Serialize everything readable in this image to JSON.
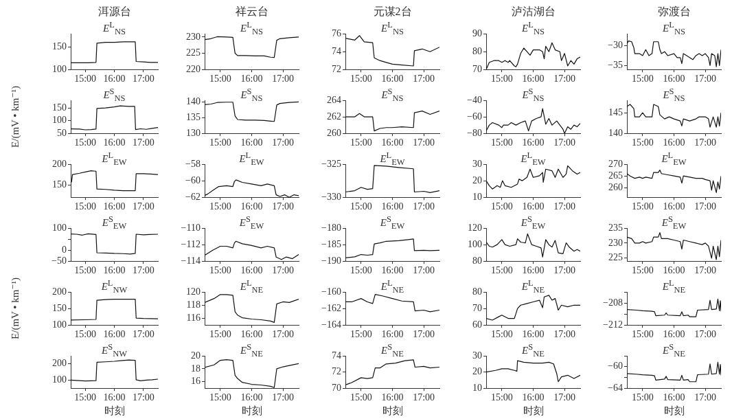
{
  "chart_data": [
    {
      "type": "line",
      "title": "洱源台",
      "annotations": [
        "E$^{L}$$_{NS}$"
      ],
      "color": "#111111",
      "x": [
        14.5,
        14.8,
        15.1,
        15.37,
        15.4,
        15.7,
        16.0,
        16.3,
        16.72,
        16.75,
        17.0,
        17.25,
        17.5
      ],
      "values": [
        115,
        115,
        115,
        116,
        159,
        161,
        161,
        162,
        162,
        118,
        117,
        116,
        116
      ],
      "xlim": [
        14.5,
        17.5
      ],
      "xticks": [
        {
          "value": 15,
          "label": "15:00"
        },
        {
          "value": 16,
          "label": "16:00"
        },
        {
          "value": 17,
          "label": "17:00"
        }
      ],
      "ylim": [
        100,
        180
      ],
      "yticks": [
        100,
        150
      ]
    },
    {
      "type": "line",
      "title": "祥云台",
      "annotations": [
        "E$^{L}$$_{NS}$"
      ],
      "color": "#111111",
      "x": [
        14.5,
        14.7,
        14.9,
        15.2,
        15.4,
        15.47,
        15.55,
        15.8,
        16.1,
        16.4,
        16.6,
        16.72,
        16.8,
        16.9,
        17.2,
        17.5
      ],
      "values": [
        229.2,
        229.5,
        230.1,
        230,
        229.9,
        225,
        224.3,
        224.3,
        224.2,
        224.2,
        223.8,
        223.7,
        229,
        229.5,
        229.8,
        230
      ],
      "xlim": [
        14.5,
        17.5
      ],
      "xticks": [
        {
          "value": 15,
          "label": "15:00"
        },
        {
          "value": 16,
          "label": "16:00"
        },
        {
          "value": 17,
          "label": "17:00"
        }
      ],
      "ylim": [
        220,
        231
      ],
      "yticks": [
        220,
        225,
        230
      ]
    },
    {
      "type": "line",
      "title": "元谋2台",
      "annotations": [
        "E$^{L}$$_{NS}$"
      ],
      "color": "#111111",
      "x": [
        14.5,
        14.8,
        14.95,
        15.1,
        15.37,
        15.42,
        15.6,
        15.8,
        16.0,
        16.3,
        16.67,
        16.7,
        16.95,
        17.2,
        17.5
      ],
      "values": [
        75.5,
        75.3,
        75.8,
        75.1,
        75,
        73.3,
        73,
        72.8,
        72.6,
        72.5,
        72.4,
        74.1,
        74.3,
        74,
        74.5
      ],
      "xlim": [
        14.5,
        17.5
      ],
      "xticks": [
        {
          "value": 15,
          "label": "15:00"
        },
        {
          "value": 16,
          "label": "16:00"
        },
        {
          "value": 17,
          "label": "17:00"
        }
      ],
      "ylim": [
        72,
        76
      ],
      "yticks": [
        72,
        74,
        76
      ]
    },
    {
      "type": "line",
      "title": "泸沽湖台",
      "annotations": [
        "E$^{L}$$_{NS}$"
      ],
      "color": "#111111",
      "x": [
        14.5,
        14.55,
        14.6,
        14.75,
        14.9,
        15.0,
        15.1,
        15.2,
        15.25,
        15.4,
        15.45,
        15.5,
        15.6,
        15.7,
        15.8,
        15.9,
        16.0,
        16.2,
        16.3,
        16.35,
        16.4,
        16.5,
        16.6,
        16.7,
        16.85,
        16.9,
        17.0,
        17.1,
        17.2,
        17.3,
        17.4,
        17.5
      ],
      "values": [
        70,
        72,
        74,
        75,
        75,
        74,
        75,
        74,
        75,
        72,
        71.5,
        73,
        79,
        82,
        80,
        78,
        81,
        81,
        80,
        76,
        83,
        80,
        85,
        81,
        80,
        75,
        79,
        72,
        75,
        73,
        76,
        77
      ],
      "xlim": [
        14.5,
        17.5
      ],
      "xticks": [
        {
          "value": 15,
          "label": "15:00"
        },
        {
          "value": 16,
          "label": "16:00"
        },
        {
          "value": 17,
          "label": "17:00"
        }
      ],
      "ylim": [
        70,
        90
      ],
      "yticks": [
        70,
        80,
        90
      ]
    },
    {
      "type": "line",
      "title": "弥渡台",
      "annotations": [
        "E$^{L}$$_{NS}$"
      ],
      "color": "#111111",
      "x": [
        14.5,
        14.55,
        14.65,
        14.72,
        14.75,
        14.9,
        15.0,
        15.1,
        15.2,
        15.3,
        15.35,
        15.5,
        15.55,
        15.6,
        15.7,
        15.8,
        16.0,
        16.1,
        16.2,
        16.25,
        16.3,
        16.5,
        16.6,
        16.7,
        16.8,
        16.9,
        17.0,
        17.1,
        17.15,
        17.2,
        17.3,
        17.35,
        17.4,
        17.45,
        17.5
      ],
      "values": [
        -29.5,
        -28.8,
        -29,
        -30.5,
        -32,
        -32,
        -32.5,
        -31,
        -32.5,
        -32,
        -29,
        -29,
        -31,
        -32,
        -31.5,
        -32.5,
        -32,
        -33,
        -33,
        -34.5,
        -32,
        -33,
        -33.5,
        -32.5,
        -32,
        -32.5,
        -32,
        -33,
        -35,
        -32,
        -32.5,
        -35.3,
        -32,
        -35,
        -31
      ],
      "xlim": [
        14.5,
        17.5
      ],
      "xticks": [
        {
          "value": 15,
          "label": "15:00"
        },
        {
          "value": 16,
          "label": "16:00"
        },
        {
          "value": 17,
          "label": "17:00"
        }
      ],
      "ylim": [
        -36,
        -27
      ],
      "yticks": [
        -35,
        -30
      ]
    },
    {
      "type": "line",
      "ylabel": "E/(mV • km⁻¹)",
      "annotations": [
        "E$^{S}$$_{NS}$"
      ],
      "color": "#111111",
      "x": [
        14.5,
        14.8,
        15.0,
        15.2,
        15.37,
        15.4,
        15.7,
        16.0,
        16.2,
        16.5,
        16.7,
        16.73,
        16.9,
        17.1,
        17.3,
        17.5
      ],
      "values": [
        68,
        67,
        64,
        65,
        67,
        148,
        150,
        154,
        158,
        156,
        156,
        65,
        68,
        66,
        70,
        73
      ],
      "xlim": [
        14.5,
        17.5
      ],
      "xticks": [
        {
          "value": 15,
          "label": "15:00"
        },
        {
          "value": 16,
          "label": "16:00"
        },
        {
          "value": 17,
          "label": "17:00"
        }
      ],
      "ylim": [
        50,
        180
      ],
      "yticks": [
        50,
        100,
        150
      ]
    },
    {
      "type": "line",
      "annotations": [
        "E$^{S}$$_{NS}$"
      ],
      "color": "#111111",
      "x": [
        14.5,
        14.7,
        14.9,
        15.2,
        15.4,
        15.47,
        15.55,
        15.8,
        16.1,
        16.4,
        16.6,
        16.72,
        16.8,
        16.9,
        17.2,
        17.5
      ],
      "values": [
        139.1,
        139.3,
        139.8,
        139.9,
        139.9,
        135.5,
        134.4,
        134.2,
        134.2,
        134.1,
        133.9,
        133.8,
        139,
        139.5,
        139.8,
        140
      ],
      "xlim": [
        14.5,
        17.5
      ],
      "xticks": [
        {
          "value": 15,
          "label": "15:00"
        },
        {
          "value": 16,
          "label": "16:00"
        },
        {
          "value": 17,
          "label": "17:00"
        }
      ],
      "ylim": [
        130,
        140.5
      ],
      "yticks": [
        130,
        135,
        140
      ]
    },
    {
      "type": "line",
      "annotations": [
        "E$^{S}$$_{NS}$"
      ],
      "color": "#111111",
      "x": [
        14.5,
        14.8,
        14.95,
        15.1,
        15.37,
        15.42,
        15.6,
        15.8,
        16.0,
        16.3,
        16.67,
        16.7,
        16.95,
        17.2,
        17.5
      ],
      "values": [
        262,
        262,
        262.4,
        262,
        262,
        260.3,
        260.6,
        260.7,
        260.7,
        260.8,
        260.7,
        262.5,
        262.7,
        262.3,
        262.7
      ],
      "xlim": [
        14.5,
        17.5
      ],
      "xticks": [
        {
          "value": 15,
          "label": "15:00"
        },
        {
          "value": 16,
          "label": "16:00"
        },
        {
          "value": 17,
          "label": "17:00"
        }
      ],
      "ylim": [
        260,
        264
      ],
      "yticks": [
        260,
        262,
        264
      ]
    },
    {
      "type": "line",
      "annotations": [
        "E$^{S}$$_{NS}$"
      ],
      "color": "#111111",
      "x": [
        14.5,
        14.6,
        14.7,
        14.9,
        15.0,
        15.05,
        15.2,
        15.3,
        15.45,
        15.6,
        15.75,
        15.85,
        15.95,
        16.1,
        16.25,
        16.3,
        16.4,
        16.5,
        16.6,
        16.75,
        16.95,
        17.0,
        17.1,
        17.2,
        17.3,
        17.4,
        17.5
      ],
      "values": [
        -77,
        -70,
        -67,
        -70,
        -73,
        -70,
        -70,
        -67,
        -70,
        -67,
        -65,
        -77,
        -65,
        -62,
        -60,
        -50,
        -69,
        -62,
        -70,
        -65,
        -75,
        -80,
        -72,
        -75,
        -70,
        -72,
        -68
      ],
      "xlim": [
        14.5,
        17.5
      ],
      "xticks": [
        {
          "value": 15,
          "label": "15:00"
        },
        {
          "value": 16,
          "label": "16:00"
        },
        {
          "value": 17,
          "label": "17:00"
        }
      ],
      "ylim": [
        -80,
        -40
      ],
      "yticks": [
        -80,
        -60,
        -40
      ]
    },
    {
      "type": "line",
      "annotations": [
        "E$^{S}$$_{NS}$"
      ],
      "color": "#111111",
      "x": [
        14.5,
        14.6,
        14.72,
        14.75,
        14.9,
        15.0,
        15.1,
        15.3,
        15.35,
        15.5,
        15.55,
        15.7,
        15.85,
        16.0,
        16.2,
        16.25,
        16.3,
        16.5,
        16.7,
        16.8,
        17.0,
        17.1,
        17.15,
        17.25,
        17.35,
        17.4,
        17.45,
        17.5
      ],
      "values": [
        146.5,
        147,
        146,
        144,
        144,
        145,
        144,
        144,
        147,
        146.5,
        144.5,
        143.5,
        144,
        143.5,
        143,
        141.8,
        143.5,
        143,
        143.5,
        144,
        144,
        143.5,
        141.5,
        144,
        141.5,
        144,
        141.8,
        145
      ],
      "xlim": [
        14.5,
        17.5
      ],
      "xticks": [
        {
          "value": 15,
          "label": "15:00"
        },
        {
          "value": 16,
          "label": "16:00"
        },
        {
          "value": 17,
          "label": "17:00"
        }
      ],
      "ylim": [
        140,
        148
      ],
      "yticks": [
        140,
        145
      ]
    },
    {
      "type": "line",
      "annotations": [
        "E$^{L}$$_{EW}$"
      ],
      "color": "#111111",
      "x": [
        14.5,
        14.53,
        14.56,
        14.8,
        15.0,
        15.2,
        15.37,
        15.4,
        15.7,
        16.0,
        16.3,
        16.72,
        16.75,
        17.0,
        17.25,
        17.5
      ],
      "values": [
        155,
        158,
        175,
        178,
        181,
        184,
        183,
        140,
        139,
        137,
        136,
        136,
        177,
        177,
        176,
        175
      ],
      "xlim": [
        14.5,
        17.5
      ],
      "xticks": [
        {
          "value": 15,
          "label": "15:00"
        },
        {
          "value": 16,
          "label": "16:00"
        },
        {
          "value": 17,
          "label": "17:00"
        }
      ],
      "ylim": [
        120,
        200
      ],
      "yticks": [
        150,
        200
      ]
    },
    {
      "type": "line",
      "annotations": [
        "E$^{L}$$_{EW}$"
      ],
      "color": "#111111",
      "x": [
        14.5,
        14.6,
        14.75,
        14.95,
        15.2,
        15.4,
        15.45,
        15.5,
        15.7,
        16.0,
        16.3,
        16.5,
        16.72,
        16.78,
        16.9,
        17.05,
        17.2,
        17.35,
        17.5
      ],
      "values": [
        -61.8,
        -61.6,
        -61.2,
        -60.7,
        -60.6,
        -60.7,
        -60.1,
        -59.9,
        -60.2,
        -60.4,
        -60.6,
        -60.4,
        -60.6,
        -61.7,
        -61.9,
        -61.7,
        -62,
        -61.7,
        -61.8
      ],
      "xlim": [
        14.5,
        17.5
      ],
      "xticks": [
        {
          "value": 15,
          "label": "15:00"
        },
        {
          "value": 16,
          "label": "16:00"
        },
        {
          "value": 17,
          "label": "17:00"
        }
      ],
      "ylim": [
        -62,
        -58
      ],
      "yticks": [
        -62,
        -60,
        -58
      ]
    },
    {
      "type": "line",
      "annotations": [
        "E$^{L}$$_{EW}$"
      ],
      "color": "#111111",
      "x": [
        14.5,
        14.8,
        15.0,
        15.2,
        15.37,
        15.42,
        15.8,
        16.2,
        16.67,
        16.7,
        17.0,
        17.2,
        17.5
      ],
      "values": [
        -329.2,
        -329,
        -328.5,
        -328.8,
        -328.7,
        -325.2,
        -325.3,
        -325.5,
        -325.7,
        -329.2,
        -329.1,
        -329.3,
        -329
      ],
      "xlim": [
        14.5,
        17.5
      ],
      "xticks": [
        {
          "value": 15,
          "label": "15:00"
        },
        {
          "value": 16,
          "label": "16:00"
        },
        {
          "value": 17,
          "label": "17:00"
        }
      ],
      "ylim": [
        -330,
        -325
      ],
      "yticks": [
        -330,
        -325
      ]
    },
    {
      "type": "line",
      "annotations": [
        "E$^{L}$$_{EW}$"
      ],
      "color": "#111111",
      "x": [
        14.5,
        14.6,
        14.7,
        14.85,
        14.95,
        15.02,
        15.1,
        15.3,
        15.5,
        15.55,
        15.65,
        15.8,
        15.9,
        16.0,
        16.2,
        16.3,
        16.32,
        16.4,
        16.6,
        16.7,
        16.8,
        16.95,
        17.05,
        17.1,
        17.25,
        17.4,
        17.5
      ],
      "values": [
        20,
        17,
        15,
        17,
        16,
        20,
        17,
        16,
        18,
        21,
        20,
        22,
        27,
        22,
        23,
        25,
        19,
        27,
        26,
        22,
        27,
        22,
        24,
        29,
        26,
        24,
        25
      ],
      "xlim": [
        14.5,
        17.5
      ],
      "xticks": [
        {
          "value": 15,
          "label": "15:00"
        },
        {
          "value": 16,
          "label": "16:00"
        },
        {
          "value": 17,
          "label": "17:00"
        }
      ],
      "ylim": [
        10,
        30
      ],
      "yticks": [
        10,
        20,
        30
      ]
    },
    {
      "type": "line",
      "annotations": [
        "E$^{L}$$_{EW}$"
      ],
      "color": "#111111",
      "x": [
        14.5,
        14.6,
        14.75,
        14.9,
        15.0,
        15.1,
        15.3,
        15.35,
        15.5,
        15.55,
        15.6,
        15.8,
        16.0,
        16.2,
        16.25,
        16.3,
        16.5,
        16.7,
        16.9,
        17.0,
        17.15,
        17.2,
        17.25,
        17.35,
        17.4,
        17.45,
        17.5
      ],
      "values": [
        266,
        265,
        264,
        264.5,
        264,
        264.5,
        264,
        266.5,
        266.5,
        267.5,
        266,
        265.5,
        265,
        264.5,
        262,
        265,
        264.5,
        264,
        264,
        263.5,
        263,
        259,
        263,
        258,
        262.5,
        259.5,
        265
      ],
      "xlim": [
        14.5,
        17.5
      ],
      "xticks": [
        {
          "value": 15,
          "label": "15:00"
        },
        {
          "value": 16,
          "label": "16:00"
        },
        {
          "value": 17,
          "label": "17:00"
        }
      ],
      "ylim": [
        256,
        270
      ],
      "yticks": [
        260,
        265,
        270
      ]
    },
    {
      "type": "line",
      "annotations": [
        "E$^{S}$$_{EW}$"
      ],
      "color": "#111111",
      "x": [
        14.5,
        14.7,
        14.9,
        15.1,
        15.37,
        15.4,
        15.7,
        16.0,
        16.3,
        16.55,
        16.72,
        16.75,
        17.0,
        17.2,
        17.5
      ],
      "values": [
        73,
        72,
        68,
        74,
        71,
        -12,
        -13,
        -15,
        -16,
        -18,
        -15,
        72,
        69,
        71,
        72
      ],
      "xlim": [
        14.5,
        17.5
      ],
      "xticks": [
        {
          "value": 15,
          "label": "15:00"
        },
        {
          "value": 16,
          "label": "16:00"
        },
        {
          "value": 17,
          "label": "17:00"
        }
      ],
      "ylim": [
        -50,
        100
      ],
      "yticks": [
        -50,
        0,
        {
          "value": 50,
          "label": null
        },
        100
      ]
    },
    {
      "type": "line",
      "annotations": [
        "E$^{S}$$_{EW}$"
      ],
      "color": "#111111",
      "x": [
        14.5,
        14.75,
        15.0,
        15.2,
        15.4,
        15.45,
        15.5,
        15.7,
        16.0,
        16.3,
        16.5,
        16.72,
        16.78,
        16.95,
        17.1,
        17.3,
        17.5
      ],
      "values": [
        -113.3,
        -112.7,
        -112.2,
        -112.2,
        -112.4,
        -111.8,
        -111.6,
        -111.9,
        -112.1,
        -112.4,
        -112.2,
        -112.4,
        -113.5,
        -113.8,
        -113.5,
        -113.7,
        -113.2
      ],
      "xlim": [
        14.5,
        17.5
      ],
      "xticks": [
        {
          "value": 15,
          "label": "15:00"
        },
        {
          "value": 16,
          "label": "16:00"
        },
        {
          "value": 17,
          "label": "17:00"
        }
      ],
      "ylim": [
        -114,
        -110
      ],
      "yticks": [
        -114,
        -112,
        -110
      ]
    },
    {
      "type": "line",
      "annotations": [
        "E$^{S}$$_{EW}$"
      ],
      "color": "#111111",
      "x": [
        14.5,
        14.8,
        15.0,
        15.2,
        15.37,
        15.42,
        15.6,
        15.8,
        16.2,
        16.5,
        16.67,
        16.7,
        17.0,
        17.2,
        17.5
      ],
      "values": [
        -189,
        -188.7,
        -188,
        -188.2,
        -188,
        -184.8,
        -184.5,
        -184,
        -183.8,
        -183.5,
        -183.3,
        -186.8,
        -186.7,
        -186.8,
        -186.7
      ],
      "xlim": [
        14.5,
        17.5
      ],
      "xticks": [
        {
          "value": 15,
          "label": "15:00"
        },
        {
          "value": 16,
          "label": "16:00"
        },
        {
          "value": 17,
          "label": "17:00"
        }
      ],
      "ylim": [
        -190,
        -180
      ],
      "yticks": [
        -190,
        -185,
        -180
      ]
    },
    {
      "type": "line",
      "annotations": [
        "E$^{S}$$_{EW}$"
      ],
      "color": "#111111",
      "x": [
        14.5,
        14.6,
        14.7,
        14.85,
        15.0,
        15.1,
        15.25,
        15.45,
        15.5,
        15.6,
        15.75,
        15.82,
        15.95,
        16.1,
        16.25,
        16.3,
        16.4,
        16.5,
        16.6,
        16.7,
        16.8,
        16.95,
        17.05,
        17.15,
        17.3,
        17.4,
        17.5
      ],
      "values": [
        103,
        98,
        97,
        100,
        106,
        100,
        98,
        100,
        107,
        103,
        102,
        113,
        100,
        98,
        96,
        85,
        106,
        100,
        97,
        105,
        90,
        89,
        102,
        97,
        92,
        94,
        92
      ],
      "xlim": [
        14.5,
        17.5
      ],
      "xticks": [
        {
          "value": 15,
          "label": "15:00"
        },
        {
          "value": 16,
          "label": "16:00"
        },
        {
          "value": 17,
          "label": "17:00"
        }
      ],
      "ylim": [
        80,
        120
      ],
      "yticks": [
        80,
        100,
        120
      ]
    },
    {
      "type": "line",
      "annotations": [
        "E$^{S}$$_{EW}$"
      ],
      "color": "#111111",
      "x": [
        14.5,
        14.65,
        14.75,
        14.9,
        15.0,
        15.1,
        15.3,
        15.35,
        15.5,
        15.55,
        15.6,
        15.8,
        16.0,
        16.2,
        16.25,
        16.3,
        16.5,
        16.7,
        16.9,
        17.0,
        17.1,
        17.2,
        17.25,
        17.35,
        17.4,
        17.45,
        17.5
      ],
      "values": [
        232,
        231.5,
        230,
        230,
        230.5,
        230,
        230.5,
        232,
        232,
        233.5,
        231.5,
        231.5,
        231,
        230.5,
        228,
        231,
        230.5,
        230,
        229.5,
        230,
        229,
        225,
        229,
        224.5,
        229,
        225.5,
        231
      ],
      "xlim": [
        14.5,
        17.5
      ],
      "xticks": [
        {
          "value": 15,
          "label": "15:00"
        },
        {
          "value": 16,
          "label": "16:00"
        },
        {
          "value": 17,
          "label": "17:00"
        }
      ],
      "ylim": [
        224,
        235
      ],
      "yticks": [
        225,
        230,
        235
      ]
    },
    {
      "type": "line",
      "ylabel": "E/(mV • km⁻¹)",
      "annotations": [
        "E$^{L}$$_{NW}$"
      ],
      "color": "#111111",
      "x": [
        14.5,
        15.0,
        15.37,
        15.4,
        15.7,
        16.0,
        16.4,
        16.72,
        16.75,
        17.0,
        17.5
      ],
      "values": [
        115,
        116,
        117,
        175,
        177,
        178,
        178,
        178,
        121,
        120,
        119
      ],
      "xlim": [
        14.5,
        17.5
      ],
      "xticks": [
        {
          "value": 15,
          "label": "15:00"
        },
        {
          "value": 16,
          "label": "16:00"
        },
        {
          "value": 17,
          "label": "17:00"
        }
      ],
      "ylim": [
        100,
        200
      ],
      "yticks": [
        100,
        150,
        200
      ]
    },
    {
      "type": "line",
      "annotations": [
        "E$^{L}$$_{NE}$"
      ],
      "color": "#111111",
      "x": [
        14.5,
        14.8,
        15.0,
        15.2,
        15.4,
        15.47,
        15.55,
        15.7,
        16.0,
        16.3,
        16.6,
        16.72,
        16.8,
        17.0,
        17.2,
        17.5
      ],
      "values": [
        118.4,
        119,
        119.6,
        119.6,
        119.5,
        117,
        116.5,
        116.1,
        115.9,
        115.8,
        115.6,
        115.4,
        118.2,
        118.5,
        118.4,
        118.9
      ],
      "xlim": [
        14.5,
        17.5
      ],
      "xticks": [
        {
          "value": 15,
          "label": "15:00"
        },
        {
          "value": 16,
          "label": "16:00"
        },
        {
          "value": 17,
          "label": "17:00"
        }
      ],
      "ylim": [
        115,
        120
      ],
      "yticks": [
        116,
        118,
        120
      ]
    },
    {
      "type": "line",
      "annotations": [
        "E$^{L}$$_{NE}$"
      ],
      "color": "#111111",
      "x": [
        14.5,
        14.7,
        15.0,
        15.2,
        15.37,
        15.45,
        15.7,
        16.0,
        16.3,
        16.67,
        16.72,
        17.0,
        17.2,
        17.5
      ],
      "values": [
        -161.2,
        -161.2,
        -160.8,
        -161.2,
        -161.4,
        -160.3,
        -160.5,
        -160.8,
        -161.1,
        -161.2,
        -162.3,
        -162.2,
        -162.4,
        -162.2
      ],
      "xlim": [
        14.5,
        17.5
      ],
      "xticks": [
        {
          "value": 15,
          "label": "15:00"
        },
        {
          "value": 16,
          "label": "16:00"
        },
        {
          "value": 17,
          "label": "17:00"
        }
      ],
      "ylim": [
        -164,
        -160
      ],
      "yticks": [
        -164,
        -162,
        -160
      ]
    },
    {
      "type": "line",
      "annotations": [
        "E$^{L}$$_{NE}$"
      ],
      "color": "#111111",
      "x": [
        14.5,
        14.7,
        14.9,
        15.0,
        15.2,
        15.4,
        15.5,
        15.6,
        15.8,
        16.0,
        16.2,
        16.3,
        16.35,
        16.5,
        16.6,
        16.7,
        16.8,
        16.9,
        17.1,
        17.3,
        17.5
      ],
      "values": [
        64,
        63,
        65,
        66,
        64,
        64,
        70,
        72,
        73,
        74,
        75,
        70.5,
        77,
        78,
        75,
        76,
        69,
        72,
        71,
        72,
        72
      ],
      "xlim": [
        14.5,
        17.5
      ],
      "xticks": [
        {
          "value": 15,
          "label": "15:00"
        },
        {
          "value": 16,
          "label": "16:00"
        },
        {
          "value": 17,
          "label": "17:00"
        }
      ],
      "ylim": [
        60,
        80
      ],
      "yticks": [
        60,
        70,
        80
      ]
    },
    {
      "type": "line",
      "annotations": [
        "E$^{L}$$_{NE}$"
      ],
      "color": "#111111",
      "x": [
        14.5,
        14.8,
        15.0,
        15.3,
        15.38,
        15.42,
        15.7,
        15.75,
        15.8,
        16.2,
        16.25,
        16.3,
        16.45,
        16.5,
        16.7,
        16.75,
        17.1,
        17.15,
        17.2,
        17.35,
        17.4,
        17.45,
        17.48,
        17.5
      ],
      "values": [
        -209.2,
        -209.3,
        -209.4,
        -209.5,
        -209.6,
        -210.3,
        -210.2,
        -209.8,
        -210.2,
        -210.3,
        -209.6,
        -210.3,
        -210.2,
        -210.5,
        -210.5,
        -209.3,
        -209.2,
        -207.5,
        -209.2,
        -209.1,
        -207.3,
        -209.4,
        -207.6,
        -209.5
      ],
      "xlim": [
        14.5,
        17.5
      ],
      "xticks": [
        {
          "value": 15,
          "label": "15:00"
        },
        {
          "value": 16,
          "label": "16:00"
        },
        {
          "value": 17,
          "label": "17:00"
        }
      ],
      "ylim": [
        -212,
        -206
      ],
      "yticks": [
        -212,
        {
          "value": -210,
          "label": null
        },
        -208,
        {
          "value": -206,
          "label": null
        }
      ]
    },
    {
      "type": "line",
      "xlabel": "时刻",
      "annotations": [
        "E$^{S}$$_{NW}$"
      ],
      "color": "#111111",
      "x": [
        14.5,
        14.8,
        15.0,
        15.2,
        15.37,
        15.4,
        15.7,
        16.0,
        16.2,
        16.5,
        16.72,
        16.75,
        16.9,
        17.1,
        17.3,
        17.5
      ],
      "values": [
        100,
        97,
        95,
        96,
        97,
        210,
        213,
        216,
        220,
        224,
        222,
        102,
        96,
        100,
        102,
        106
      ],
      "xlim": [
        14.5,
        17.5
      ],
      "xticks": [
        {
          "value": 15,
          "label": "15:00"
        },
        {
          "value": 16,
          "label": "16:00"
        },
        {
          "value": 17,
          "label": "17:00"
        }
      ],
      "ylim": [
        50,
        250
      ],
      "yticks": [
        100,
        200
      ]
    },
    {
      "type": "line",
      "xlabel": "时刻",
      "annotations": [
        "E$^{S}$$_{NE}$"
      ],
      "color": "#111111",
      "x": [
        14.5,
        14.8,
        15.0,
        15.2,
        15.4,
        15.47,
        15.55,
        15.7,
        16.0,
        16.3,
        16.6,
        16.72,
        16.8,
        17.0,
        17.2,
        17.5
      ],
      "values": [
        18.2,
        18.6,
        19.3,
        19.4,
        19.3,
        17,
        16.5,
        15.9,
        15.6,
        15.5,
        15.3,
        15.1,
        18.0,
        18.3,
        18.5,
        18.8
      ],
      "xlim": [
        14.5,
        17.5
      ],
      "xticks": [
        {
          "value": 15,
          "label": "15:00"
        },
        {
          "value": 16,
          "label": "16:00"
        },
        {
          "value": 17,
          "label": "17:00"
        }
      ],
      "ylim": [
        15,
        20
      ],
      "yticks": [
        16,
        18,
        20
      ]
    },
    {
      "type": "line",
      "xlabel": "时刻",
      "annotations": [
        "E$^{S}$$_{NE}$"
      ],
      "color": "#111111",
      "x": [
        14.5,
        14.7,
        15.0,
        15.2,
        15.37,
        15.45,
        15.6,
        15.8,
        16.1,
        16.4,
        16.67,
        16.72,
        17.0,
        17.2,
        17.5
      ],
      "values": [
        70.4,
        70.7,
        71.3,
        71.2,
        71.3,
        72.5,
        72.5,
        73,
        73.1,
        73.4,
        73.5,
        72.6,
        72.7,
        72.5,
        72.6
      ],
      "xlim": [
        14.5,
        17.5
      ],
      "xticks": [
        {
          "value": 15,
          "label": "15:00"
        },
        {
          "value": 16,
          "label": "16:00"
        },
        {
          "value": 17,
          "label": "17:00"
        }
      ],
      "ylim": [
        70,
        74
      ],
      "yticks": [
        70,
        72,
        74
      ]
    },
    {
      "type": "line",
      "xlabel": "时刻",
      "annotations": [
        "E$^{S}$$_{NE}$"
      ],
      "color": "#111111",
      "x": [
        14.5,
        14.8,
        15.0,
        15.2,
        15.4,
        15.48,
        15.5,
        15.7,
        16.0,
        16.3,
        16.5,
        16.65,
        16.75,
        16.8,
        16.9,
        17.1,
        17.3,
        17.5
      ],
      "values": [
        20,
        21,
        22,
        22,
        21,
        20.5,
        27,
        26,
        25.5,
        25.5,
        26,
        25,
        19,
        14,
        17,
        18,
        16,
        18
      ],
      "xlim": [
        14.5,
        17.5
      ],
      "xticks": [
        {
          "value": 15,
          "label": "15:00"
        },
        {
          "value": 16,
          "label": "16:00"
        },
        {
          "value": 17,
          "label": "17:00"
        }
      ],
      "ylim": [
        10,
        30
      ],
      "yticks": [
        10,
        20,
        30
      ]
    },
    {
      "type": "line",
      "xlabel": "时刻",
      "annotations": [
        "E$^{S}$$_{NE}$"
      ],
      "color": "#111111",
      "x": [
        14.5,
        14.8,
        15.0,
        15.3,
        15.38,
        15.42,
        15.7,
        15.75,
        15.8,
        16.2,
        16.25,
        16.3,
        16.45,
        16.5,
        16.7,
        16.75,
        17.1,
        17.15,
        17.2,
        17.35,
        17.4,
        17.45,
        17.48,
        17.5
      ],
      "values": [
        -61.3,
        -61.4,
        -61.5,
        -61.6,
        -61.7,
        -62.5,
        -62.3,
        -61.8,
        -62.4,
        -62.5,
        -61.6,
        -62.5,
        -62.4,
        -62.8,
        -62.8,
        -61.5,
        -61.4,
        -59.5,
        -61.4,
        -61.3,
        -59.2,
        -61.4,
        -59.6,
        -61.6
      ],
      "xlim": [
        14.5,
        17.5
      ],
      "xticks": [
        {
          "value": 15,
          "label": "15:00"
        },
        {
          "value": 16,
          "label": "16:00"
        },
        {
          "value": 17,
          "label": "17:00"
        }
      ],
      "ylim": [
        -64,
        -58
      ],
      "yticks": [
        -64,
        {
          "value": -62,
          "label": null
        },
        -60,
        {
          "value": -58,
          "label": null
        }
      ]
    }
  ]
}
